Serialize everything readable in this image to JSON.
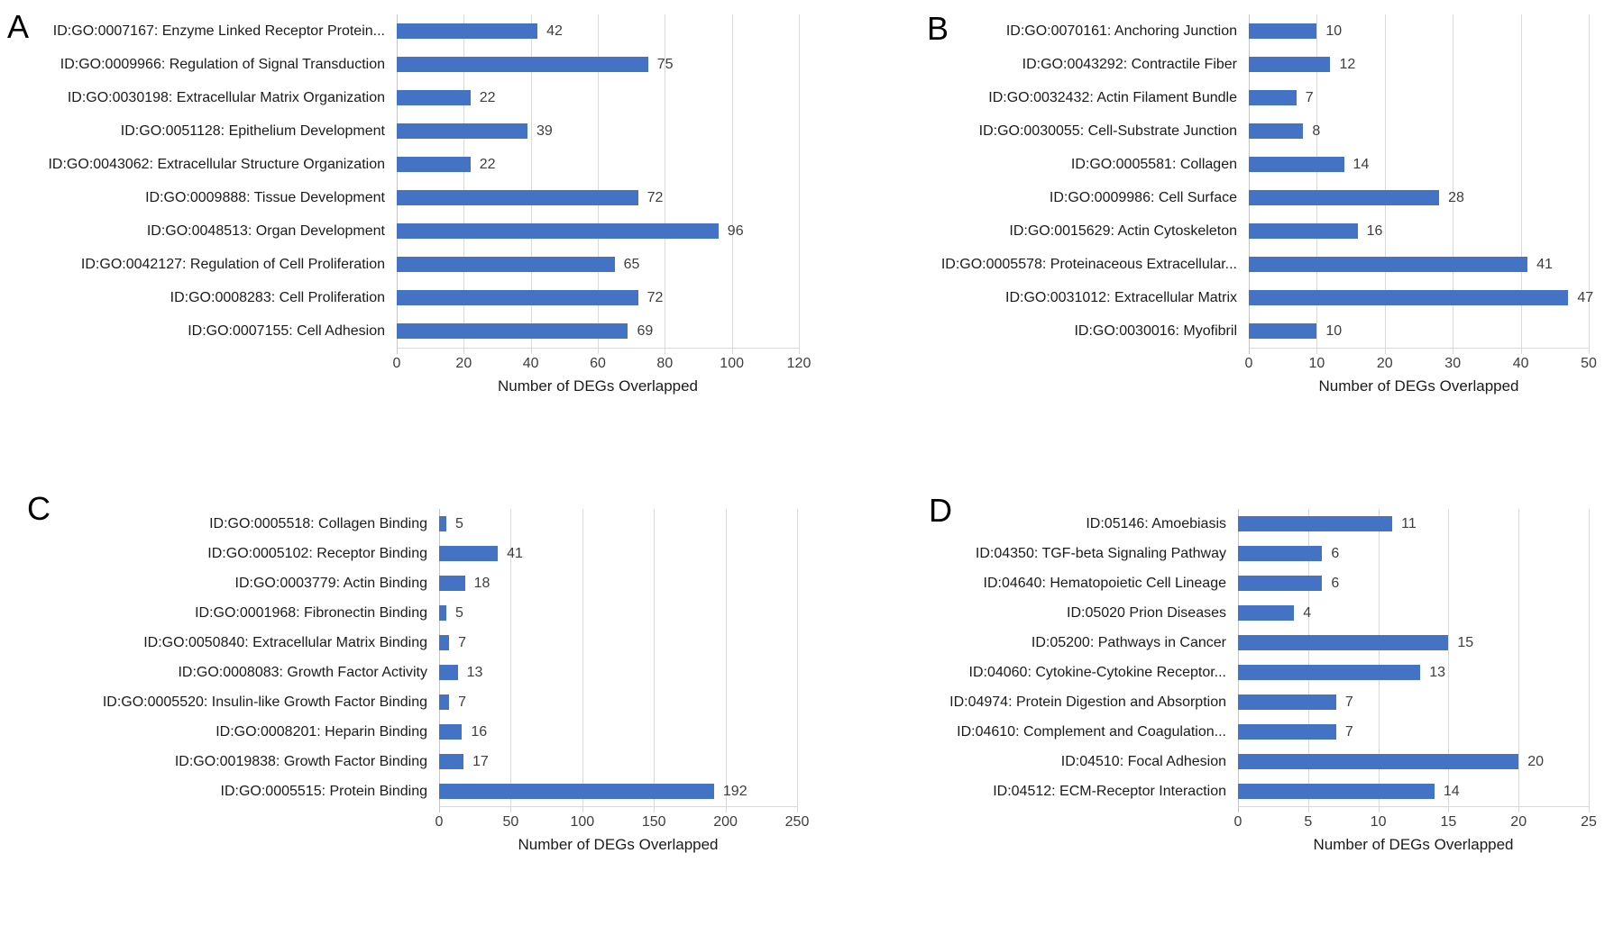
{
  "figure": {
    "axis_label": "Number of DEGs Overlapped"
  },
  "colors": {
    "bar": "#4472C4",
    "gridline": "#D9D9D9",
    "label_text": "#1B1B1B",
    "value_text": "#3D3D3D"
  },
  "chart_data": [
    {
      "type": "bar",
      "panel": "A",
      "orientation": "horizontal",
      "categories": [
        "ID:GO:0007167: Enzyme Linked Receptor Protein...",
        "ID:GO:0009966: Regulation of Signal Transduction",
        "ID:GO:0030198: Extracellular Matrix Organization",
        "ID:GO:0051128: Epithelium Development",
        "ID:GO:0043062: Extracellular Structure Organization",
        "ID:GO:0009888: Tissue Development",
        "ID:GO:0048513: Organ Development",
        "ID:GO:0042127: Regulation of Cell Proliferation",
        "ID:GO:0008283: Cell Proliferation",
        "ID:GO:0007155: Cell Adhesion"
      ],
      "values": [
        42,
        75,
        22,
        39,
        22,
        72,
        96,
        65,
        72,
        69
      ],
      "xlabel": "Number of DEGs Overlapped",
      "xlim": [
        0,
        120
      ],
      "xticks": [
        0,
        20,
        40,
        60,
        80,
        100,
        120
      ],
      "grid": true,
      "legend": false
    },
    {
      "type": "bar",
      "panel": "B",
      "orientation": "horizontal",
      "categories": [
        "ID:GO:0070161: Anchoring Junction",
        "ID:GO:0043292: Contractile Fiber",
        "ID:GO:0032432: Actin Filament Bundle",
        "ID:GO:0030055: Cell-Substrate Junction",
        "ID:GO:0005581: Collagen",
        "ID:GO:0009986: Cell Surface",
        "ID:GO:0015629: Actin Cytoskeleton",
        "ID:GO:0005578: Proteinaceous Extracellular...",
        "ID:GO:0031012: Extracellular Matrix",
        "ID:GO:0030016: Myofibril"
      ],
      "values": [
        10,
        12,
        7,
        8,
        14,
        28,
        16,
        41,
        47,
        10
      ],
      "xlabel": "Number of DEGs Overlapped",
      "xlim": [
        0,
        50
      ],
      "xticks": [
        0,
        10,
        20,
        30,
        40,
        50
      ],
      "grid": true,
      "legend": false
    },
    {
      "type": "bar",
      "panel": "C",
      "orientation": "horizontal",
      "categories": [
        "ID:GO:0005518: Collagen Binding",
        "ID:GO:0005102: Receptor Binding",
        "ID:GO:0003779: Actin Binding",
        "ID:GO:0001968: Fibronectin Binding",
        "ID:GO:0050840: Extracellular Matrix Binding",
        "ID:GO:0008083: Growth Factor Activity",
        "ID:GO:0005520: Insulin-like Growth Factor Binding",
        "ID:GO:0008201: Heparin Binding",
        "ID:GO:0019838: Growth Factor Binding",
        "ID:GO:0005515: Protein Binding"
      ],
      "values": [
        5,
        41,
        18,
        5,
        7,
        13,
        7,
        16,
        17,
        192
      ],
      "xlabel": "Number of DEGs Overlapped",
      "xlim": [
        0,
        250
      ],
      "xticks": [
        0,
        50,
        100,
        150,
        200,
        250
      ],
      "grid": true,
      "legend": false
    },
    {
      "type": "bar",
      "panel": "D",
      "orientation": "horizontal",
      "categories": [
        "ID:05146: Amoebiasis",
        "ID:04350: TGF-beta Signaling Pathway",
        "ID:04640: Hematopoietic Cell Lineage",
        "ID:05020 Prion Diseases",
        "ID:05200: Pathways in Cancer",
        "ID:04060: Cytokine-Cytokine Receptor...",
        "ID:04974: Protein Digestion and Absorption",
        "ID:04610: Complement and Coagulation...",
        "ID:04510: Focal Adhesion",
        "ID:04512: ECM-Receptor Interaction"
      ],
      "values": [
        11,
        6,
        6,
        4,
        15,
        13,
        7,
        7,
        20,
        14
      ],
      "xlabel": "Number of DEGs Overlapped",
      "xlim": [
        0,
        25
      ],
      "xticks": [
        0,
        5,
        10,
        15,
        20,
        25
      ],
      "grid": true,
      "legend": false
    }
  ]
}
